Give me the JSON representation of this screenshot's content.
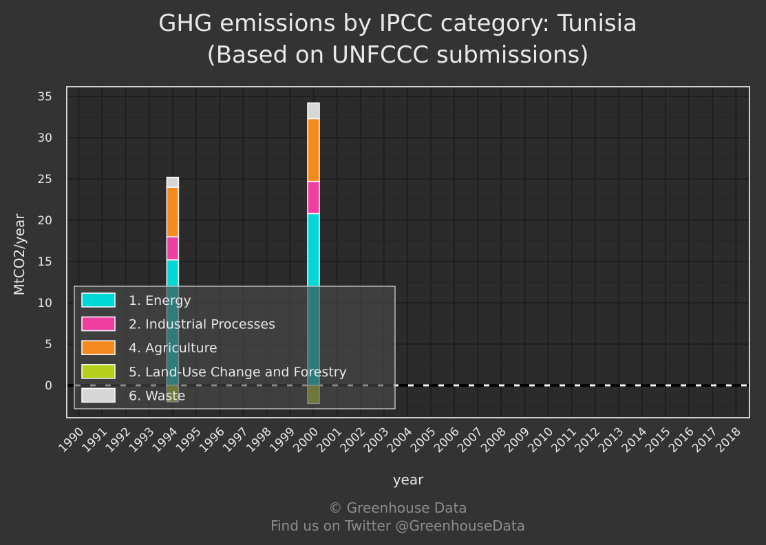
{
  "chart_data": {
    "type": "bar",
    "stacked": true,
    "title_line1": "GHG emissions by IPCC category: Tunisia",
    "title_line2": "(Based on UNFCCC submissions)",
    "xlabel": "year",
    "ylabel": "MtCO2/year",
    "ylim": [
      -4,
      36
    ],
    "yticks": [
      0,
      5,
      10,
      15,
      20,
      25,
      30,
      35
    ],
    "grid": true,
    "legend_position": "bottom-left",
    "categories": [
      "1990",
      "1991",
      "1992",
      "1993",
      "1994",
      "1995",
      "1996",
      "1997",
      "1998",
      "1999",
      "2000",
      "2001",
      "2002",
      "2003",
      "2004",
      "2005",
      "2006",
      "2007",
      "2008",
      "2009",
      "2010",
      "2011",
      "2012",
      "2013",
      "2014",
      "2015",
      "2016",
      "2017",
      "2018"
    ],
    "series": [
      {
        "name": "1. Energy",
        "color": "#00d8d8",
        "values": {
          "1994": 15.2,
          "2000": 20.8
        }
      },
      {
        "name": "2. Industrial Processes",
        "color": "#ee3fa0",
        "values": {
          "1994": 2.8,
          "2000": 3.9
        }
      },
      {
        "name": "4. Agriculture",
        "color": "#f58a1f",
        "values": {
          "1994": 6.0,
          "2000": 7.6
        }
      },
      {
        "name": "5. Land-Use Change and Forestry",
        "color": "#b5cf1a",
        "values": {
          "1994": -2.0,
          "2000": -2.2
        }
      },
      {
        "name": "6. Waste",
        "color": "#d6d6d6",
        "values": {
          "1994": 1.2,
          "2000": 1.9
        }
      }
    ],
    "zero_line": "dashed black/white"
  },
  "credits": {
    "line1": "© Greenhouse Data",
    "line2": "Find us on Twitter @GreenhouseData"
  }
}
